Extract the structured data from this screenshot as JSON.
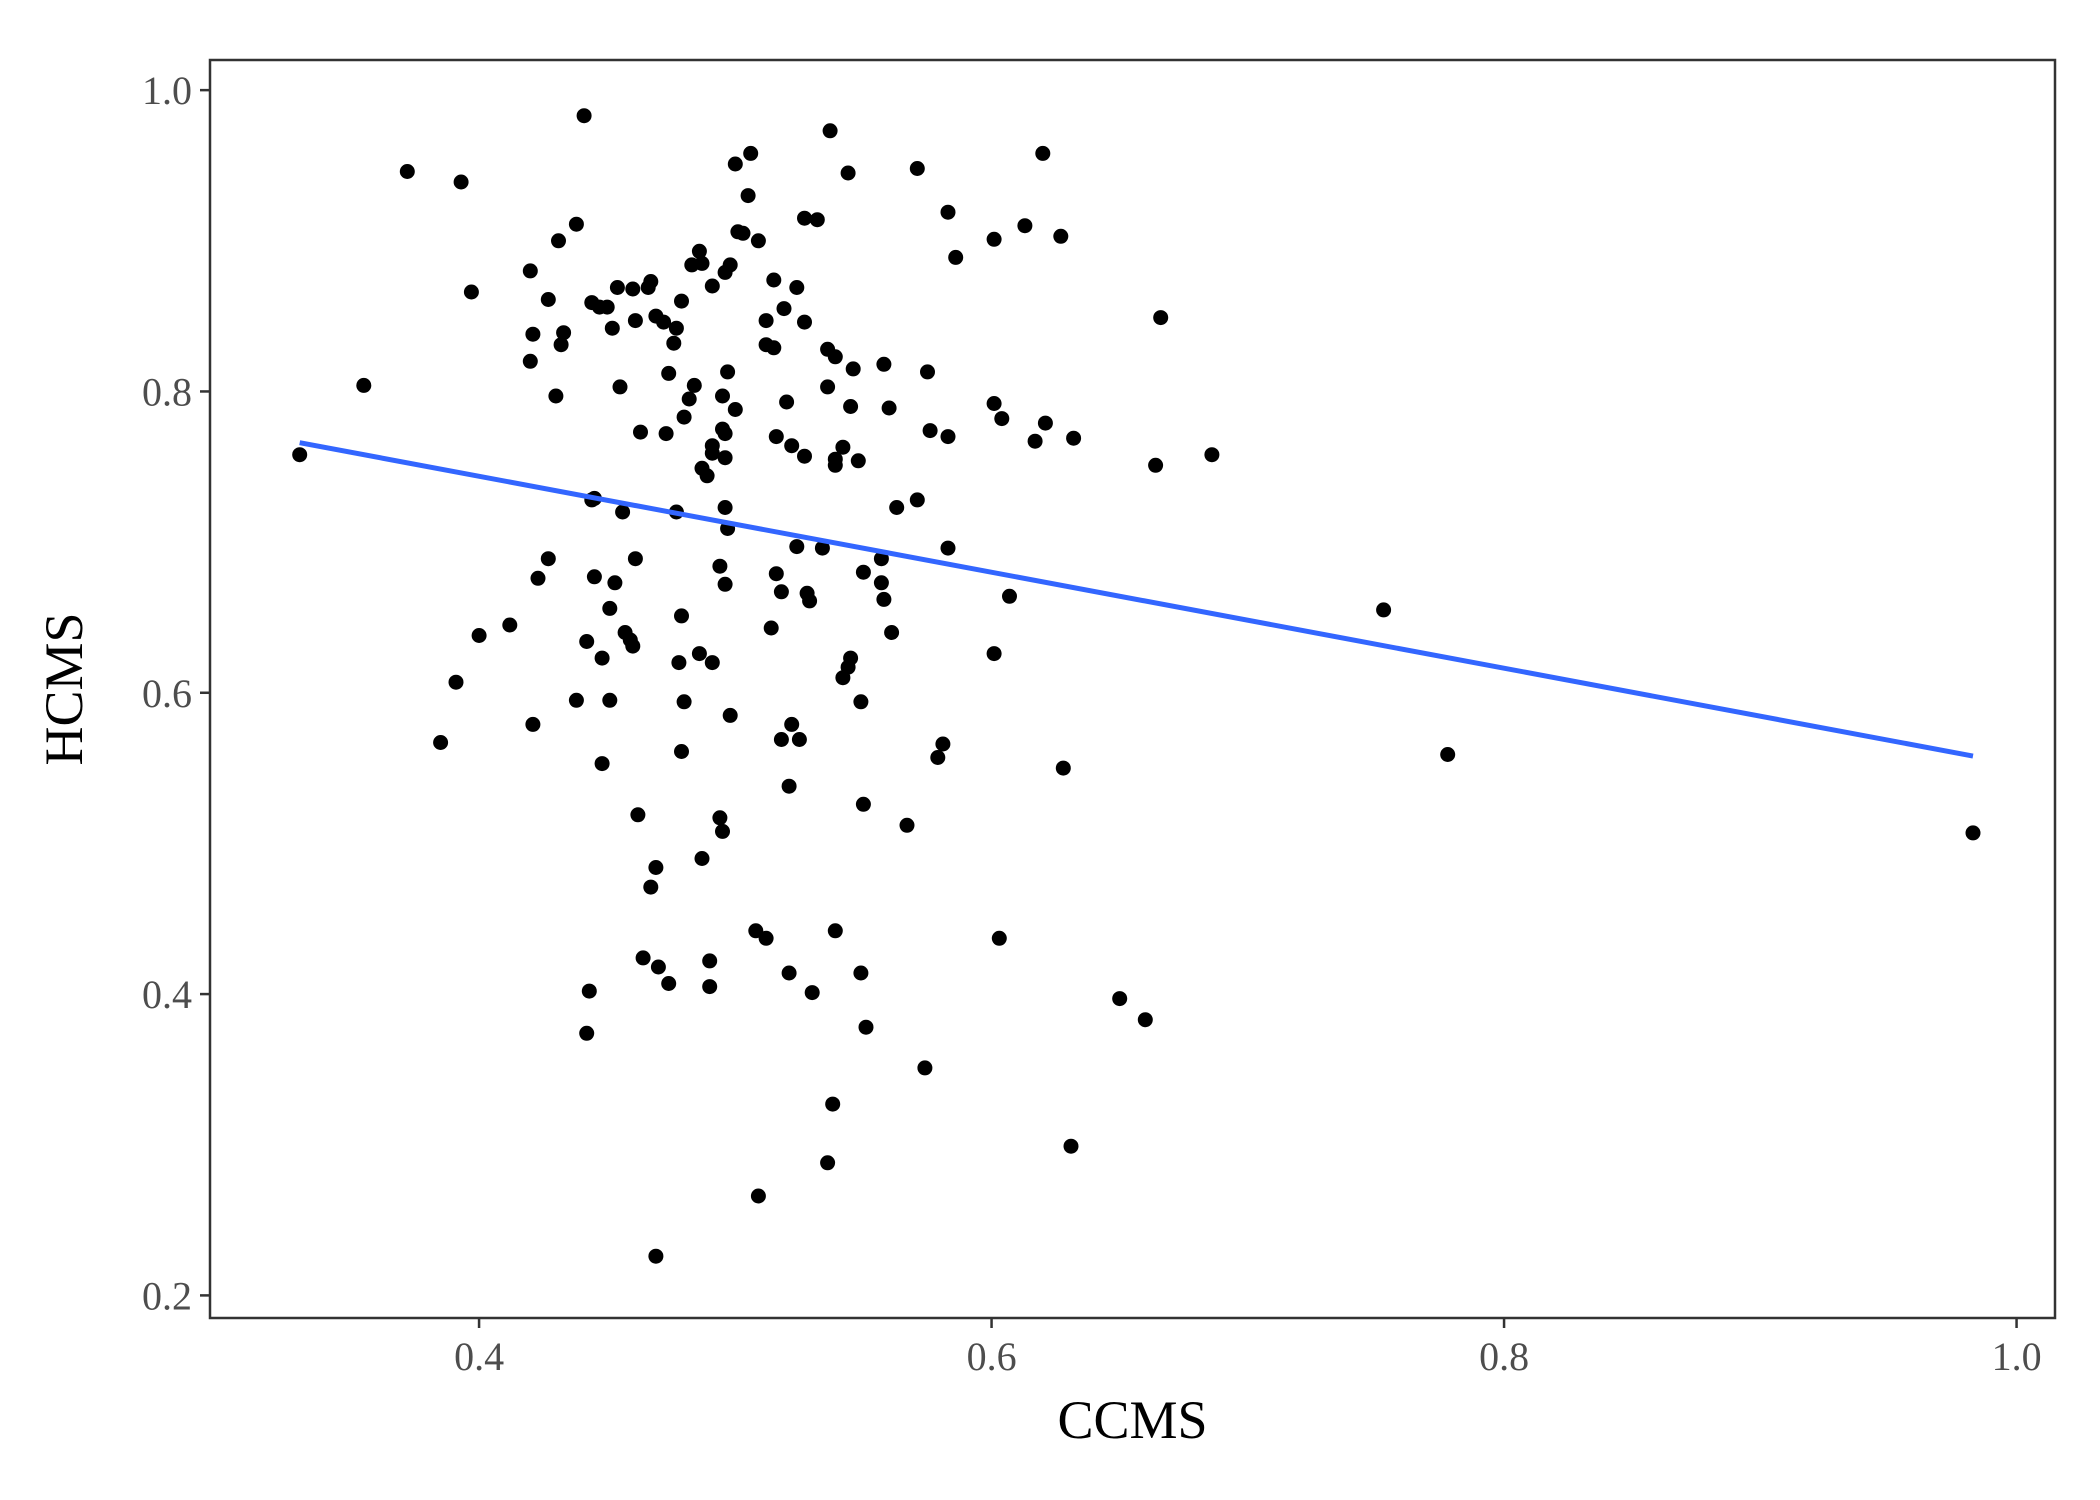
{
  "chart_data": {
    "type": "scatter",
    "title": "",
    "xlabel": "CCMS",
    "ylabel": "HCMS",
    "xlim": [
      0.295,
      1.015
    ],
    "ylim": [
      0.185,
      1.02
    ],
    "x_ticks": [
      0.4,
      0.6,
      0.8,
      1.0
    ],
    "x_tick_labels": [
      "0.4",
      "0.6",
      "0.8",
      "1.0"
    ],
    "y_ticks": [
      0.2,
      0.4,
      0.6,
      0.8,
      1.0
    ],
    "y_tick_labels": [
      "0.2",
      "0.4",
      "0.6",
      "0.8",
      "1.0"
    ],
    "grid": false,
    "point_color": "#000000",
    "trend_color": "#3366ff",
    "trend_line": {
      "x": [
        0.33,
        0.983
      ],
      "y": [
        0.766,
        0.558
      ]
    },
    "points": [
      [
        0.33,
        0.758
      ],
      [
        0.355,
        0.804
      ],
      [
        0.372,
        0.946
      ],
      [
        0.393,
        0.939
      ],
      [
        0.397,
        0.866
      ],
      [
        0.385,
        0.567
      ],
      [
        0.391,
        0.607
      ],
      [
        0.4,
        0.638
      ],
      [
        0.412,
        0.645
      ],
      [
        0.42,
        0.88
      ],
      [
        0.421,
        0.838
      ],
      [
        0.42,
        0.82
      ],
      [
        0.427,
        0.861
      ],
      [
        0.431,
        0.9
      ],
      [
        0.432,
        0.831
      ],
      [
        0.433,
        0.839
      ],
      [
        0.43,
        0.797
      ],
      [
        0.438,
        0.911
      ],
      [
        0.441,
        0.983
      ],
      [
        0.444,
        0.859
      ],
      [
        0.447,
        0.856
      ],
      [
        0.45,
        0.856
      ],
      [
        0.452,
        0.842
      ],
      [
        0.454,
        0.869
      ],
      [
        0.455,
        0.803
      ],
      [
        0.46,
        0.868
      ],
      [
        0.461,
        0.847
      ],
      [
        0.466,
        0.869
      ],
      [
        0.467,
        0.873
      ],
      [
        0.469,
        0.85
      ],
      [
        0.472,
        0.846
      ],
      [
        0.474,
        0.812
      ],
      [
        0.476,
        0.832
      ],
      [
        0.477,
        0.842
      ],
      [
        0.479,
        0.86
      ],
      [
        0.483,
        0.884
      ],
      [
        0.486,
        0.893
      ],
      [
        0.487,
        0.885
      ],
      [
        0.482,
        0.795
      ],
      [
        0.484,
        0.804
      ],
      [
        0.491,
        0.87
      ],
      [
        0.496,
        0.879
      ],
      [
        0.498,
        0.884
      ],
      [
        0.5,
        0.951
      ],
      [
        0.501,
        0.906
      ],
      [
        0.503,
        0.905
      ],
      [
        0.505,
        0.93
      ],
      [
        0.506,
        0.958
      ],
      [
        0.509,
        0.9
      ],
      [
        0.512,
        0.847
      ],
      [
        0.515,
        0.874
      ],
      [
        0.519,
        0.855
      ],
      [
        0.524,
        0.869
      ],
      [
        0.527,
        0.915
      ],
      [
        0.532,
        0.914
      ],
      [
        0.537,
        0.973
      ],
      [
        0.544,
        0.945
      ],
      [
        0.571,
        0.948
      ],
      [
        0.583,
        0.919
      ],
      [
        0.586,
        0.889
      ],
      [
        0.601,
        0.901
      ],
      [
        0.613,
        0.91
      ],
      [
        0.62,
        0.958
      ],
      [
        0.627,
        0.903
      ],
      [
        0.666,
        0.849
      ],
      [
        0.512,
        0.831
      ],
      [
        0.515,
        0.829
      ],
      [
        0.527,
        0.846
      ],
      [
        0.536,
        0.828
      ],
      [
        0.539,
        0.823
      ],
      [
        0.546,
        0.815
      ],
      [
        0.558,
        0.818
      ],
      [
        0.575,
        0.813
      ],
      [
        0.536,
        0.803
      ],
      [
        0.497,
        0.813
      ],
      [
        0.52,
        0.793
      ],
      [
        0.545,
        0.79
      ],
      [
        0.56,
        0.789
      ],
      [
        0.601,
        0.792
      ],
      [
        0.604,
        0.782
      ],
      [
        0.621,
        0.779
      ],
      [
        0.463,
        0.773
      ],
      [
        0.473,
        0.772
      ],
      [
        0.48,
        0.783
      ],
      [
        0.495,
        0.797
      ],
      [
        0.5,
        0.788
      ],
      [
        0.495,
        0.775
      ],
      [
        0.496,
        0.772
      ],
      [
        0.516,
        0.77
      ],
      [
        0.522,
        0.764
      ],
      [
        0.527,
        0.757
      ],
      [
        0.542,
        0.763
      ],
      [
        0.576,
        0.774
      ],
      [
        0.583,
        0.77
      ],
      [
        0.617,
        0.767
      ],
      [
        0.632,
        0.769
      ],
      [
        0.664,
        0.751
      ],
      [
        0.686,
        0.758
      ],
      [
        0.491,
        0.764
      ],
      [
        0.491,
        0.759
      ],
      [
        0.496,
        0.756
      ],
      [
        0.487,
        0.749
      ],
      [
        0.489,
        0.744
      ],
      [
        0.539,
        0.755
      ],
      [
        0.539,
        0.751
      ],
      [
        0.548,
        0.754
      ],
      [
        0.444,
        0.728
      ],
      [
        0.445,
        0.729
      ],
      [
        0.456,
        0.72
      ],
      [
        0.477,
        0.72
      ],
      [
        0.496,
        0.723
      ],
      [
        0.563,
        0.723
      ],
      [
        0.571,
        0.728
      ],
      [
        0.497,
        0.709
      ],
      [
        0.524,
        0.697
      ],
      [
        0.534,
        0.696
      ],
      [
        0.583,
        0.696
      ],
      [
        0.557,
        0.689
      ],
      [
        0.427,
        0.689
      ],
      [
        0.461,
        0.689
      ],
      [
        0.494,
        0.684
      ],
      [
        0.516,
        0.679
      ],
      [
        0.423,
        0.676
      ],
      [
        0.445,
        0.677
      ],
      [
        0.453,
        0.673
      ],
      [
        0.496,
        0.672
      ],
      [
        0.518,
        0.667
      ],
      [
        0.528,
        0.666
      ],
      [
        0.529,
        0.661
      ],
      [
        0.55,
        0.68
      ],
      [
        0.557,
        0.673
      ],
      [
        0.558,
        0.662
      ],
      [
        0.607,
        0.664
      ],
      [
        0.451,
        0.656
      ],
      [
        0.479,
        0.651
      ],
      [
        0.442,
        0.634
      ],
      [
        0.457,
        0.64
      ],
      [
        0.459,
        0.635
      ],
      [
        0.46,
        0.631
      ],
      [
        0.514,
        0.643
      ],
      [
        0.561,
        0.64
      ],
      [
        0.448,
        0.623
      ],
      [
        0.478,
        0.62
      ],
      [
        0.486,
        0.626
      ],
      [
        0.491,
        0.62
      ],
      [
        0.545,
        0.623
      ],
      [
        0.544,
        0.617
      ],
      [
        0.601,
        0.626
      ],
      [
        0.542,
        0.61
      ],
      [
        0.438,
        0.595
      ],
      [
        0.451,
        0.595
      ],
      [
        0.48,
        0.594
      ],
      [
        0.498,
        0.585
      ],
      [
        0.549,
        0.594
      ],
      [
        0.421,
        0.579
      ],
      [
        0.518,
        0.569
      ],
      [
        0.522,
        0.579
      ],
      [
        0.525,
        0.569
      ],
      [
        0.479,
        0.561
      ],
      [
        0.579,
        0.557
      ],
      [
        0.581,
        0.566
      ],
      [
        0.628,
        0.55
      ],
      [
        0.448,
        0.553
      ],
      [
        0.521,
        0.538
      ],
      [
        0.55,
        0.526
      ],
      [
        0.462,
        0.519
      ],
      [
        0.494,
        0.517
      ],
      [
        0.495,
        0.508
      ],
      [
        0.567,
        0.512
      ],
      [
        0.469,
        0.484
      ],
      [
        0.487,
        0.49
      ],
      [
        0.467,
        0.471
      ],
      [
        0.508,
        0.442
      ],
      [
        0.512,
        0.437
      ],
      [
        0.539,
        0.442
      ],
      [
        0.603,
        0.437
      ],
      [
        0.464,
        0.424
      ],
      [
        0.47,
        0.418
      ],
      [
        0.49,
        0.422
      ],
      [
        0.521,
        0.414
      ],
      [
        0.549,
        0.414
      ],
      [
        0.474,
        0.407
      ],
      [
        0.49,
        0.405
      ],
      [
        0.53,
        0.401
      ],
      [
        0.443,
        0.402
      ],
      [
        0.442,
        0.374
      ],
      [
        0.551,
        0.378
      ],
      [
        0.65,
        0.397
      ],
      [
        0.66,
        0.383
      ],
      [
        0.574,
        0.351
      ],
      [
        0.538,
        0.327
      ],
      [
        0.631,
        0.299
      ],
      [
        0.536,
        0.288
      ],
      [
        0.509,
        0.266
      ],
      [
        0.469,
        0.226
      ],
      [
        0.753,
        0.655
      ],
      [
        0.778,
        0.559
      ],
      [
        0.983,
        0.507
      ]
    ]
  }
}
